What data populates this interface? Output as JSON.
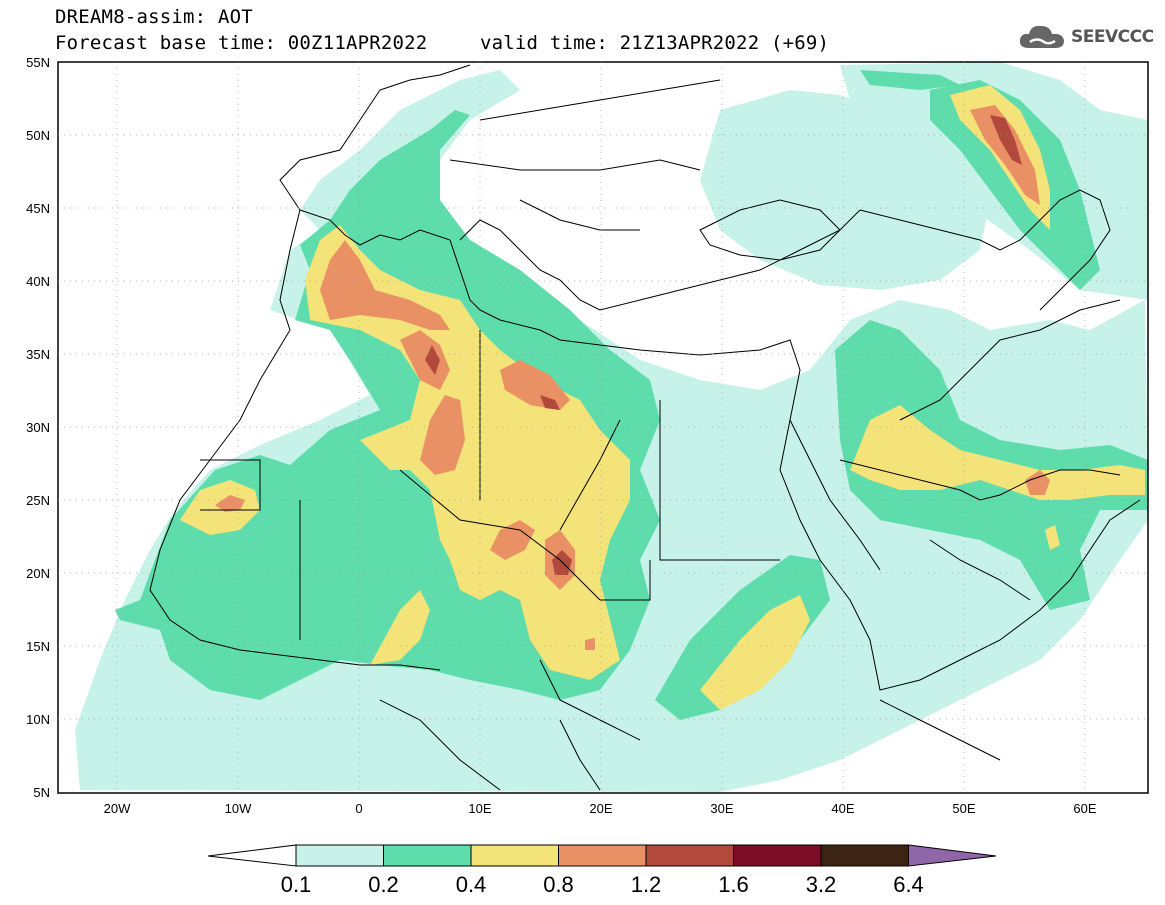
{
  "header": {
    "title_line1": "DREAM8-assim: AOT",
    "base_time": "Forecast base time: 00Z11APR2022",
    "valid_time": "valid time: 21Z13APR2022 (+69)"
  },
  "logo": {
    "text": "SEEVCCC",
    "icon": "cloud-icon"
  },
  "axes": {
    "lon_ticks": [
      "20W",
      "10W",
      "0",
      "10E",
      "20E",
      "30E",
      "40E",
      "50E",
      "60E"
    ],
    "lat_ticks": [
      "55N",
      "50N",
      "45N",
      "40N",
      "35N",
      "30N",
      "25N",
      "20N",
      "15N",
      "10N",
      "5N"
    ]
  },
  "legend": {
    "colors": [
      "#c6f2ea",
      "#5edcac",
      "#f3e379",
      "#e99065",
      "#b2493d",
      "#7d0d24",
      "#3c2413",
      "#8f67a8"
    ],
    "labels": [
      "0.1",
      "0.2",
      "0.4",
      "0.8",
      "1.2",
      "1.6",
      "3.2",
      "6.4"
    ]
  },
  "colors": {
    "level1": "#c6f2ea",
    "level2": "#5edcac",
    "level3": "#f3e379",
    "level4": "#e99065",
    "level5": "#b2493d"
  }
}
